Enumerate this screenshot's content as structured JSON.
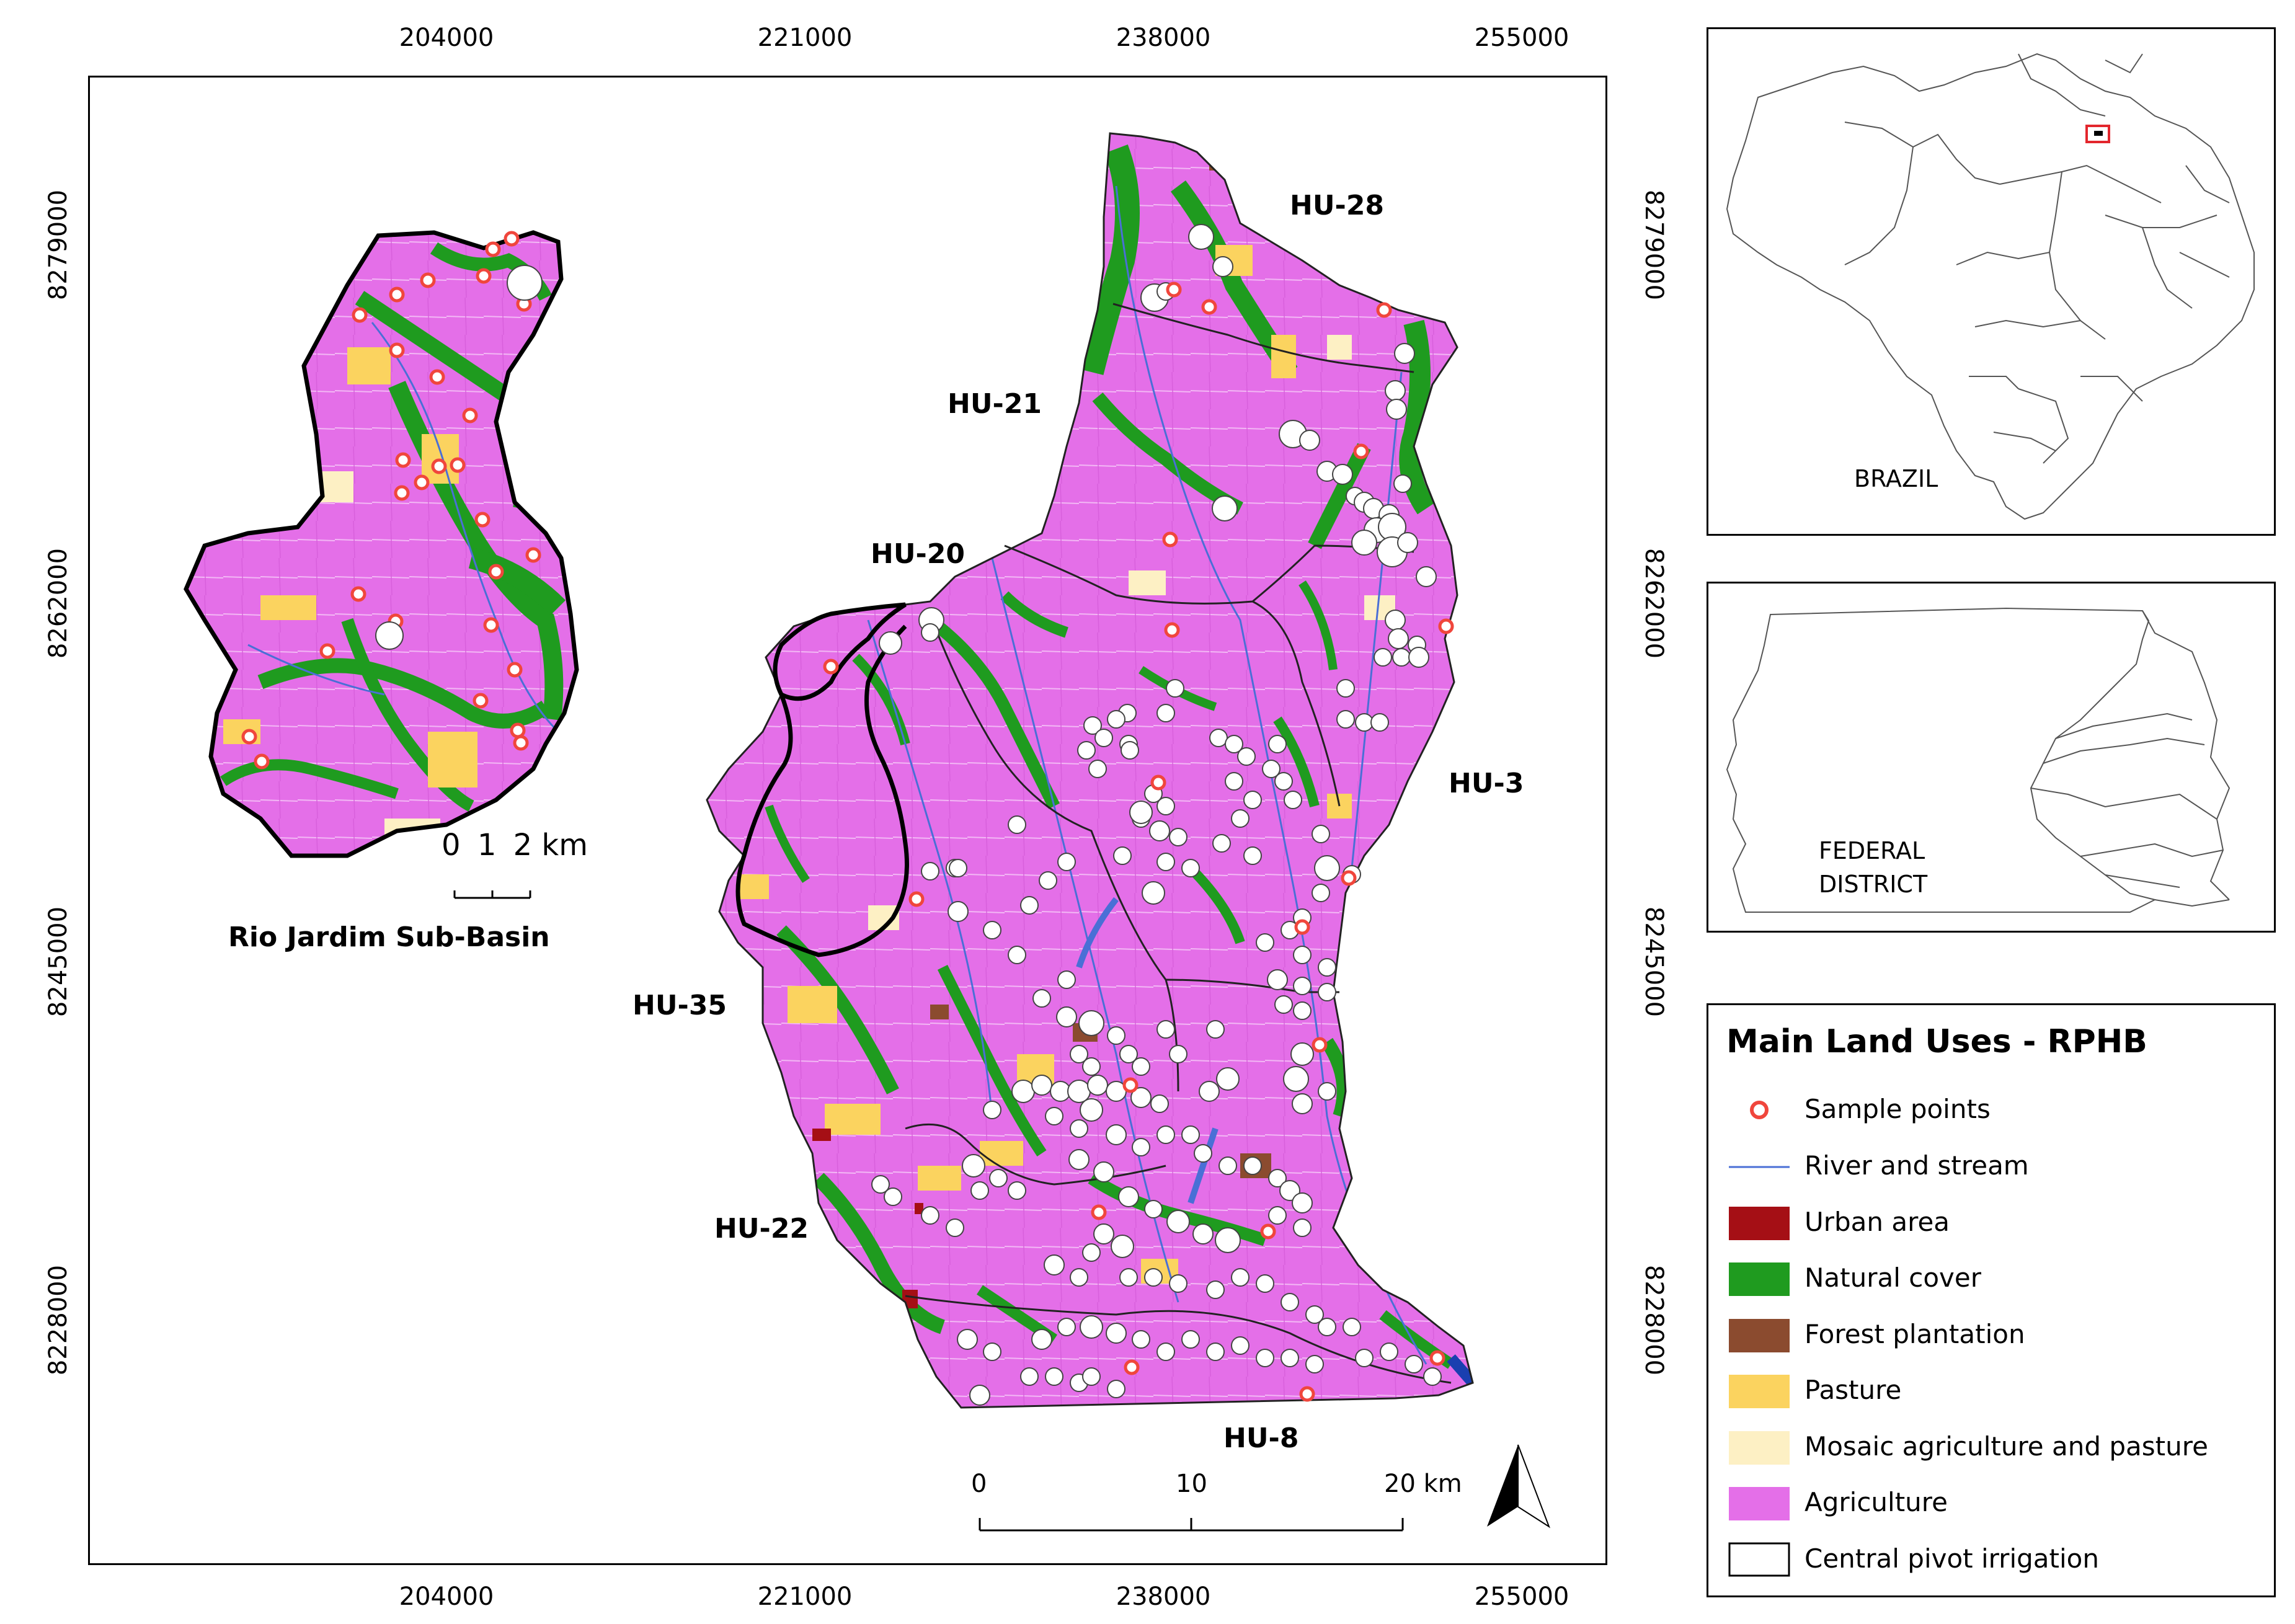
{
  "map_frame": {
    "x_ticks": [
      "204000",
      "221000",
      "238000",
      "255000"
    ],
    "y_ticks": [
      "8279000",
      "8262000",
      "8245000",
      "8228000"
    ]
  },
  "subbasin": {
    "title": "Rio Jardim Sub-Basin",
    "scale_labels": [
      "0",
      "1",
      "2 km"
    ]
  },
  "main_map": {
    "hu_labels": [
      "HU-28",
      "HU-21",
      "HU-20",
      "HU-3",
      "HU-35",
      "HU-22",
      "HU-8"
    ],
    "scale_labels": [
      "0",
      "10",
      "20 km"
    ]
  },
  "inset_brazil": {
    "label": "BRAZIL"
  },
  "inset_df": {
    "label_line1": "FEDERAL",
    "label_line2": "DISTRICT"
  },
  "legend": {
    "title": "Main Land Uses - RPHB",
    "items": [
      {
        "label": "Sample points",
        "kind": "point",
        "color": "#f0463c"
      },
      {
        "label": "River and stream",
        "kind": "line",
        "color": "#4a6fd6"
      },
      {
        "label": "Urban area",
        "kind": "fill",
        "color": "#a50f15"
      },
      {
        "label": "Natural cover",
        "kind": "fill",
        "color": "#1f9b1f"
      },
      {
        "label": "Forest plantation",
        "kind": "fill",
        "color": "#8b4b2f"
      },
      {
        "label": "Pasture",
        "kind": "fill",
        "color": "#fbd35f"
      },
      {
        "label": "Mosaic agriculture and pasture",
        "kind": "fill",
        "color": "#fdf0c4"
      },
      {
        "label": "Agriculture",
        "kind": "fill",
        "color": "#e46fe8"
      },
      {
        "label": "Central pivot irrigation",
        "kind": "outline",
        "color": "#000000"
      }
    ]
  },
  "colors": {
    "agriculture": "#e46fe8",
    "natural": "#1f9b1f",
    "pasture": "#fbd35f",
    "mosaic": "#fdf0c4",
    "urban": "#a50f15",
    "forest": "#8b4b2f",
    "river": "#4a6fd6",
    "sample": "#f0463c"
  }
}
